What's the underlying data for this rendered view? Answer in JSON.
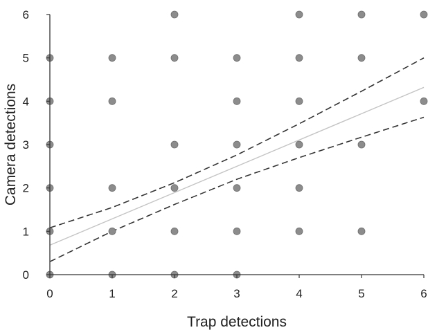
{
  "chart_data": {
    "type": "scatter",
    "title": "",
    "xlabel": "Trap detections",
    "ylabel": "Camera detections",
    "xlim": [
      0,
      6
    ],
    "ylim": [
      0,
      6
    ],
    "x_ticks": [
      "0",
      "1",
      "2",
      "3",
      "4",
      "5",
      "6"
    ],
    "y_ticks": [
      "0",
      "1",
      "2",
      "3",
      "4",
      "5",
      "6"
    ],
    "grid": false,
    "legend": "none",
    "points": [
      [
        0,
        0
      ],
      [
        0,
        1
      ],
      [
        0,
        2
      ],
      [
        0,
        3
      ],
      [
        0,
        4
      ],
      [
        0,
        5
      ],
      [
        1,
        0
      ],
      [
        1,
        1
      ],
      [
        1,
        2
      ],
      [
        1,
        4
      ],
      [
        1,
        5
      ],
      [
        2,
        0
      ],
      [
        2,
        1
      ],
      [
        2,
        2
      ],
      [
        2,
        3
      ],
      [
        2,
        5
      ],
      [
        2,
        6
      ],
      [
        3,
        0
      ],
      [
        3,
        1
      ],
      [
        3,
        2
      ],
      [
        3,
        3
      ],
      [
        3,
        4
      ],
      [
        3,
        5
      ],
      [
        4,
        1
      ],
      [
        4,
        2
      ],
      [
        4,
        3
      ],
      [
        4,
        4
      ],
      [
        4,
        5
      ],
      [
        4,
        6
      ],
      [
        5,
        1
      ],
      [
        5,
        3
      ],
      [
        5,
        5
      ],
      [
        5,
        6
      ],
      [
        6,
        4
      ],
      [
        6,
        6
      ]
    ],
    "fit_line": {
      "x": [
        0,
        6
      ],
      "y": [
        0.68,
        4.32
      ]
    },
    "ci_upper": {
      "x": [
        0,
        1,
        2,
        3,
        4,
        5,
        6
      ],
      "y": [
        1.08,
        1.55,
        2.12,
        2.76,
        3.48,
        4.23,
        5.0
      ]
    },
    "ci_lower": {
      "x": [
        0,
        1,
        2,
        3,
        4,
        5,
        6
      ],
      "y": [
        0.3,
        1.0,
        1.62,
        2.2,
        2.7,
        3.17,
        3.63
      ]
    },
    "colors": {
      "points": "#8c8c8c",
      "point_stroke": "#6e6e6e",
      "fit": "#c4c4c4",
      "ci": "#333333",
      "axis": "#333333"
    }
  }
}
